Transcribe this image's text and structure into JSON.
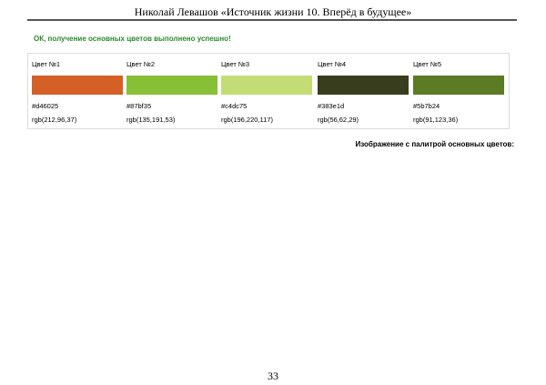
{
  "header": {
    "title": "Николай Левашов «Источник жизни 10. Вперёд в будущее»"
  },
  "status": {
    "message": "ОК, получение основных цветов выполнено успешно!",
    "color": "#2c8a2c"
  },
  "palette": {
    "colors": [
      {
        "label": "Цвет №1",
        "hex": "#d46025",
        "rgb": "rgb(212,96,37)"
      },
      {
        "label": "Цвет №2",
        "hex": "#87bf35",
        "rgb": "rgb(135,191,53)"
      },
      {
        "label": "Цвет №3",
        "hex": "#c4dc75",
        "rgb": "rgb(196,220,117)"
      },
      {
        "label": "Цвет №4",
        "hex": "#383e1d",
        "rgb": "rgb(56,62,29)"
      },
      {
        "label": "Цвет №5",
        "hex": "#5b7b24",
        "rgb": "rgb(91,123,36)"
      }
    ]
  },
  "palette_image": {
    "label": "Изображение с палитрой основных цветов:"
  },
  "footer": {
    "page_number": "33"
  }
}
